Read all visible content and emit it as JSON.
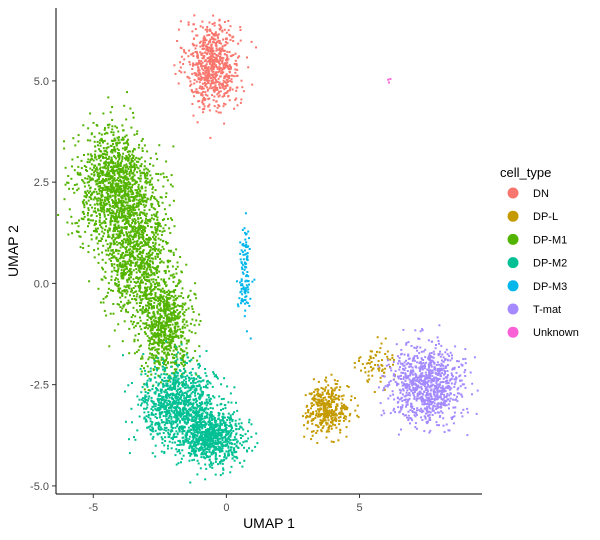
{
  "chart_data": {
    "type": "scatter",
    "title": "",
    "xlabel": "UMAP 1",
    "ylabel": "UMAP 2",
    "xlim": [
      -6.4,
      9.6
    ],
    "ylim": [
      -5.2,
      6.8
    ],
    "xticks": [
      -5,
      0,
      5
    ],
    "yticks": [
      -5.0,
      -2.5,
      0.0,
      2.5,
      5.0
    ],
    "xtick_labels": [
      "-5",
      "0",
      "5"
    ],
    "ytick_labels": [
      "-5.0",
      "-2.5",
      "0.0",
      "2.5",
      "5.0"
    ],
    "grid": false,
    "legend": {
      "title": "cell_type",
      "placement": "right",
      "entries": [
        "DN",
        "DP-L",
        "DP-M1",
        "DP-M2",
        "DP-M3",
        "T-mat",
        "Unknown"
      ]
    },
    "series": [
      {
        "name": "DN",
        "color": "#F8766D",
        "approx_points": 700,
        "clusters": [
          {
            "cx": -0.5,
            "cy": 5.4,
            "sx": 0.5,
            "sy": 0.55,
            "n": 700
          }
        ]
      },
      {
        "name": "DP-L",
        "color": "#C49A00",
        "approx_points": 450,
        "clusters": [
          {
            "cx": 3.8,
            "cy": -3.1,
            "sx": 0.4,
            "sy": 0.3,
            "n": 380
          },
          {
            "cx": 5.6,
            "cy": -2.0,
            "sx": 0.35,
            "sy": 0.3,
            "n": 70
          }
        ]
      },
      {
        "name": "DP-M1",
        "color": "#53B400",
        "approx_points": 3000,
        "clusters": [
          {
            "cx": -4.2,
            "cy": 2.4,
            "sx": 0.7,
            "sy": 0.7,
            "n": 1200
          },
          {
            "cx": -3.4,
            "cy": 0.8,
            "sx": 0.6,
            "sy": 0.8,
            "n": 1000
          },
          {
            "cx": -2.3,
            "cy": -1.0,
            "sx": 0.5,
            "sy": 0.6,
            "n": 800
          }
        ]
      },
      {
        "name": "DP-M2",
        "color": "#00C094",
        "approx_points": 1800,
        "clusters": [
          {
            "cx": -1.8,
            "cy": -3.0,
            "sx": 0.7,
            "sy": 0.5,
            "n": 1000
          },
          {
            "cx": -0.6,
            "cy": -3.8,
            "sx": 0.6,
            "sy": 0.35,
            "n": 800
          }
        ]
      },
      {
        "name": "DP-M3",
        "color": "#00B6EB",
        "approx_points": 110,
        "clusters": [
          {
            "cx": 0.7,
            "cy": 0.3,
            "sx": 0.12,
            "sy": 0.6,
            "n": 110
          }
        ]
      },
      {
        "name": "T-mat",
        "color": "#A58AFF",
        "approx_points": 900,
        "clusters": [
          {
            "cx": 7.5,
            "cy": -2.5,
            "sx": 0.7,
            "sy": 0.45,
            "n": 900
          }
        ]
      },
      {
        "name": "Unknown",
        "color": "#FB61D7",
        "approx_points": 3,
        "clusters": [
          {
            "cx": 6.1,
            "cy": 5.0,
            "sx": 0.04,
            "sy": 0.04,
            "n": 3
          }
        ]
      }
    ]
  }
}
